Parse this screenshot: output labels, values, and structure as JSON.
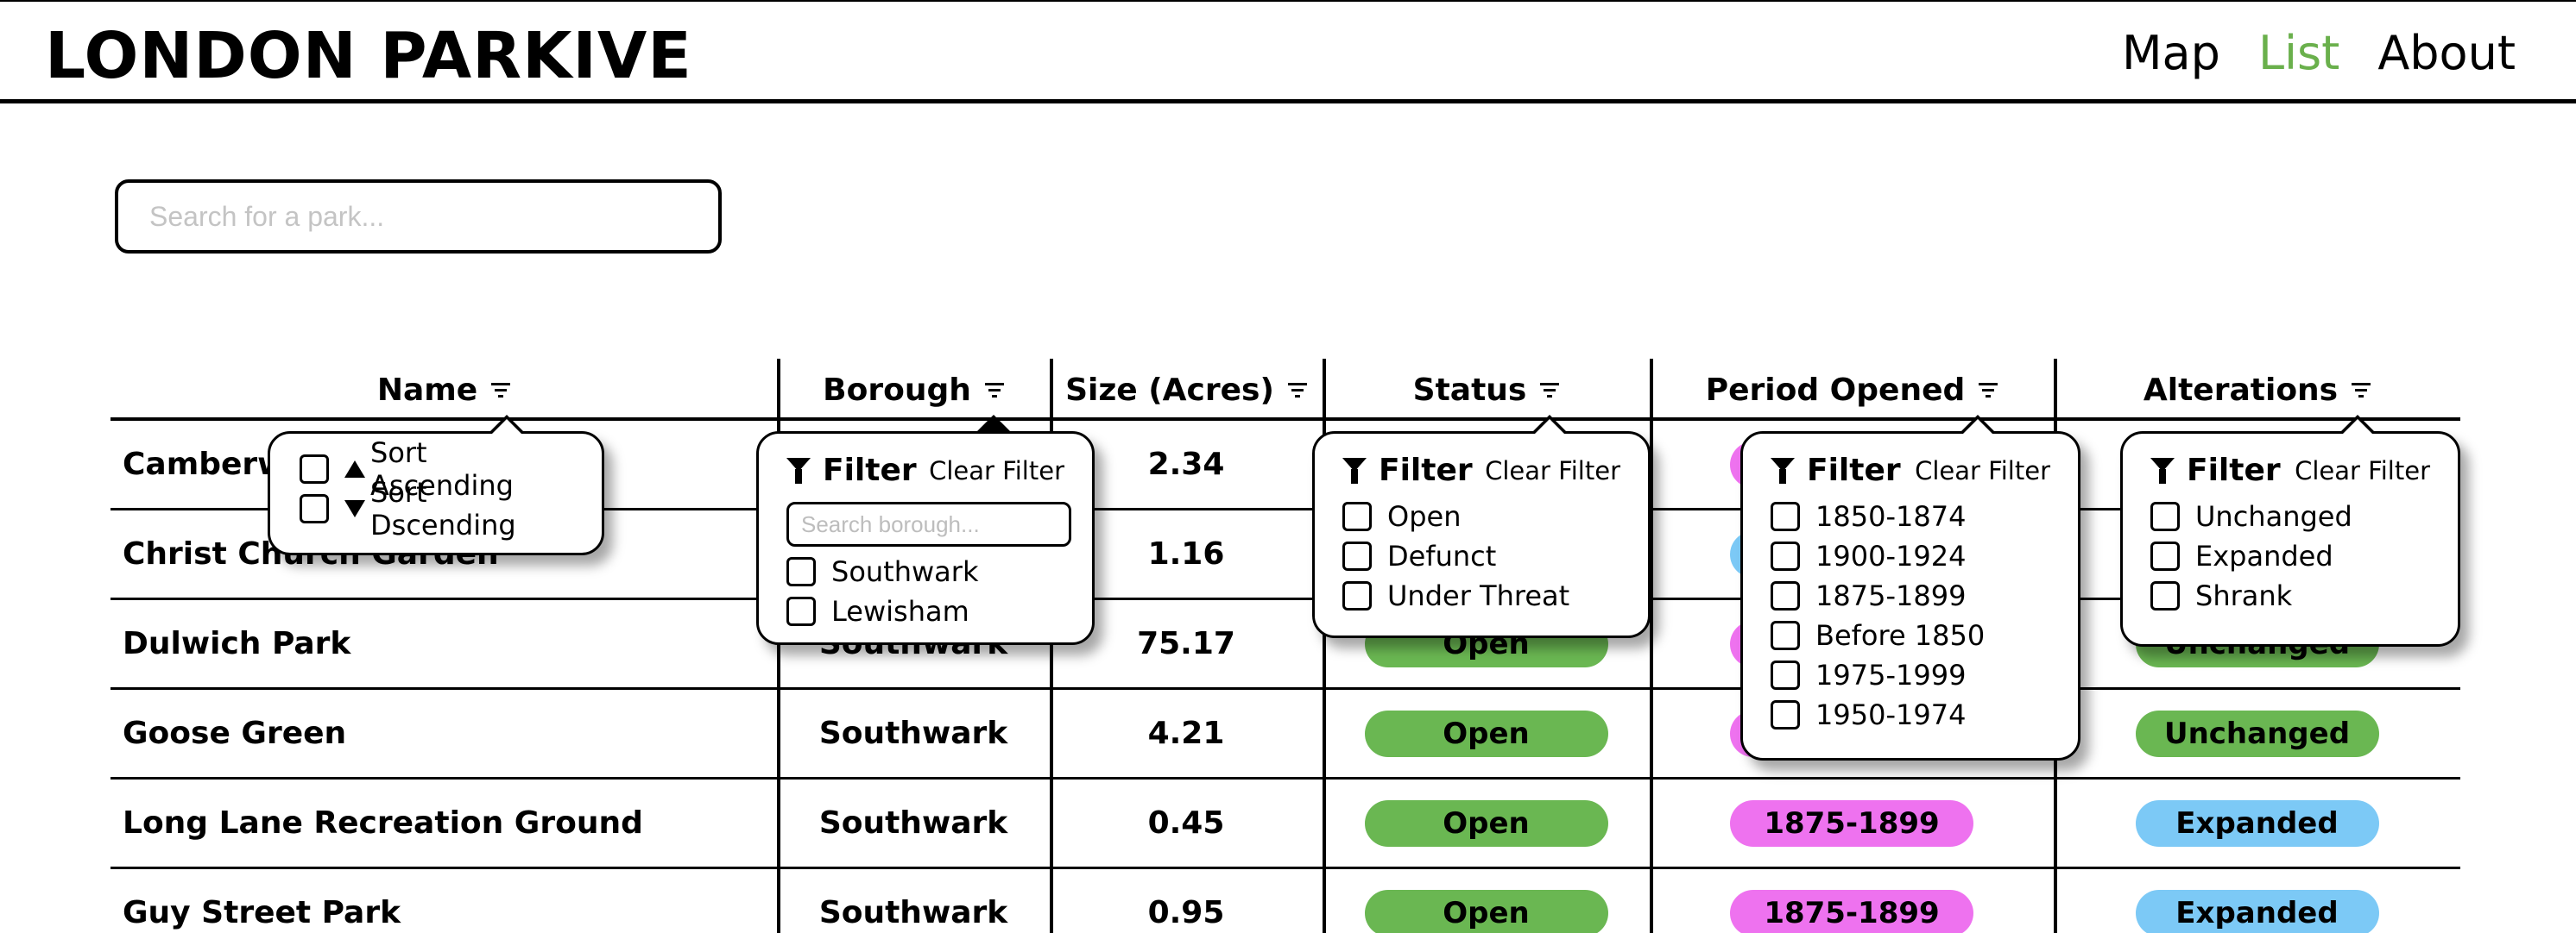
{
  "app": {
    "title": "LONDON PARKIVE",
    "nav": [
      {
        "label": "Map",
        "active": false
      },
      {
        "label": "List",
        "active": true
      },
      {
        "label": "About",
        "active": false
      }
    ],
    "accent_color": "#6ab04c"
  },
  "search": {
    "placeholder": "Search for a park..."
  },
  "table": {
    "columns": [
      "Name",
      "Borough",
      "Size (Acres)",
      "Status",
      "Period Opened",
      "Alterations"
    ],
    "rows": [
      {
        "name": "Camberwell",
        "borough": "",
        "size": "2.34",
        "status": "",
        "period": "",
        "alteration": ""
      },
      {
        "name": "Christ Church Garden",
        "borough": "",
        "size": "1.16",
        "status": "",
        "period": "",
        "alteration": ""
      },
      {
        "name": "Dulwich Park",
        "borough": "Southwark",
        "size": "75.17",
        "status": "Open",
        "period": "",
        "alteration": "Unchanged"
      },
      {
        "name": "Goose Green",
        "borough": "Southwark",
        "size": "4.21",
        "status": "Open",
        "period": "",
        "alteration": "Unchanged"
      },
      {
        "name": "Long Lane Recreation Ground",
        "borough": "Southwark",
        "size": "0.45",
        "status": "Open",
        "period": "1875-1899",
        "alteration": "Expanded"
      },
      {
        "name": "Guy Street Park",
        "borough": "Southwark",
        "size": "0.95",
        "status": "Open",
        "period": "1875-1899",
        "alteration": "Expanded"
      }
    ],
    "pill_colors": {
      "status_open": "#6ab752",
      "period": "#ee72ef",
      "unchanged": "#6ab752",
      "expanded": "#7cc9f6"
    }
  },
  "popovers": {
    "sort": {
      "options": [
        "Sort Ascending",
        "Sort Dscending"
      ]
    },
    "borough": {
      "title": "Filter",
      "clear": "Clear Filter",
      "search_placeholder": "Search borough...",
      "options": [
        "Southwark",
        "Lewisham"
      ]
    },
    "status": {
      "title": "Filter",
      "clear": "Clear Filter",
      "options": [
        "Open",
        "Defunct",
        "Under Threat"
      ]
    },
    "period": {
      "title": "Filter",
      "clear": "Clear Filter",
      "options": [
        "1850-1874",
        "1900-1924",
        "1875-1899",
        "Before 1850",
        "1975-1999",
        "1950-1974"
      ]
    },
    "alterations": {
      "title": "Filter",
      "clear": "Clear Filter",
      "options": [
        "Unchanged",
        "Expanded",
        "Shrank"
      ]
    }
  }
}
